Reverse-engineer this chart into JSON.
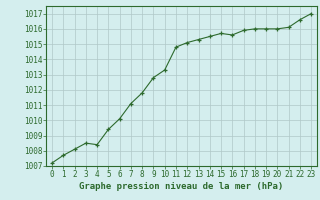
{
  "x": [
    0,
    1,
    2,
    3,
    4,
    5,
    6,
    7,
    8,
    9,
    10,
    11,
    12,
    13,
    14,
    15,
    16,
    17,
    18,
    19,
    20,
    21,
    22,
    23
  ],
  "y": [
    1007.2,
    1007.7,
    1008.1,
    1008.5,
    1008.4,
    1009.4,
    1010.1,
    1011.1,
    1011.8,
    1012.8,
    1013.3,
    1014.8,
    1015.1,
    1015.3,
    1015.5,
    1015.7,
    1015.6,
    1015.9,
    1016.0,
    1016.0,
    1016.0,
    1016.1,
    1016.6,
    1017.0
  ],
  "ylim": [
    1007,
    1017.5
  ],
  "yticks": [
    1007,
    1008,
    1009,
    1010,
    1011,
    1012,
    1013,
    1014,
    1015,
    1016,
    1017
  ],
  "xticks": [
    0,
    1,
    2,
    3,
    4,
    5,
    6,
    7,
    8,
    9,
    10,
    11,
    12,
    13,
    14,
    15,
    16,
    17,
    18,
    19,
    20,
    21,
    22,
    23
  ],
  "xlabel": "Graphe pression niveau de la mer (hPa)",
  "line_color": "#2d6a2d",
  "marker": "+",
  "bg_color": "#d4eeee",
  "grid_color": "#b0c8c8",
  "tick_label_color": "#2d6a2d",
  "xlabel_color": "#2d6a2d",
  "xlabel_fontsize": 6.5,
  "tick_fontsize": 5.5
}
